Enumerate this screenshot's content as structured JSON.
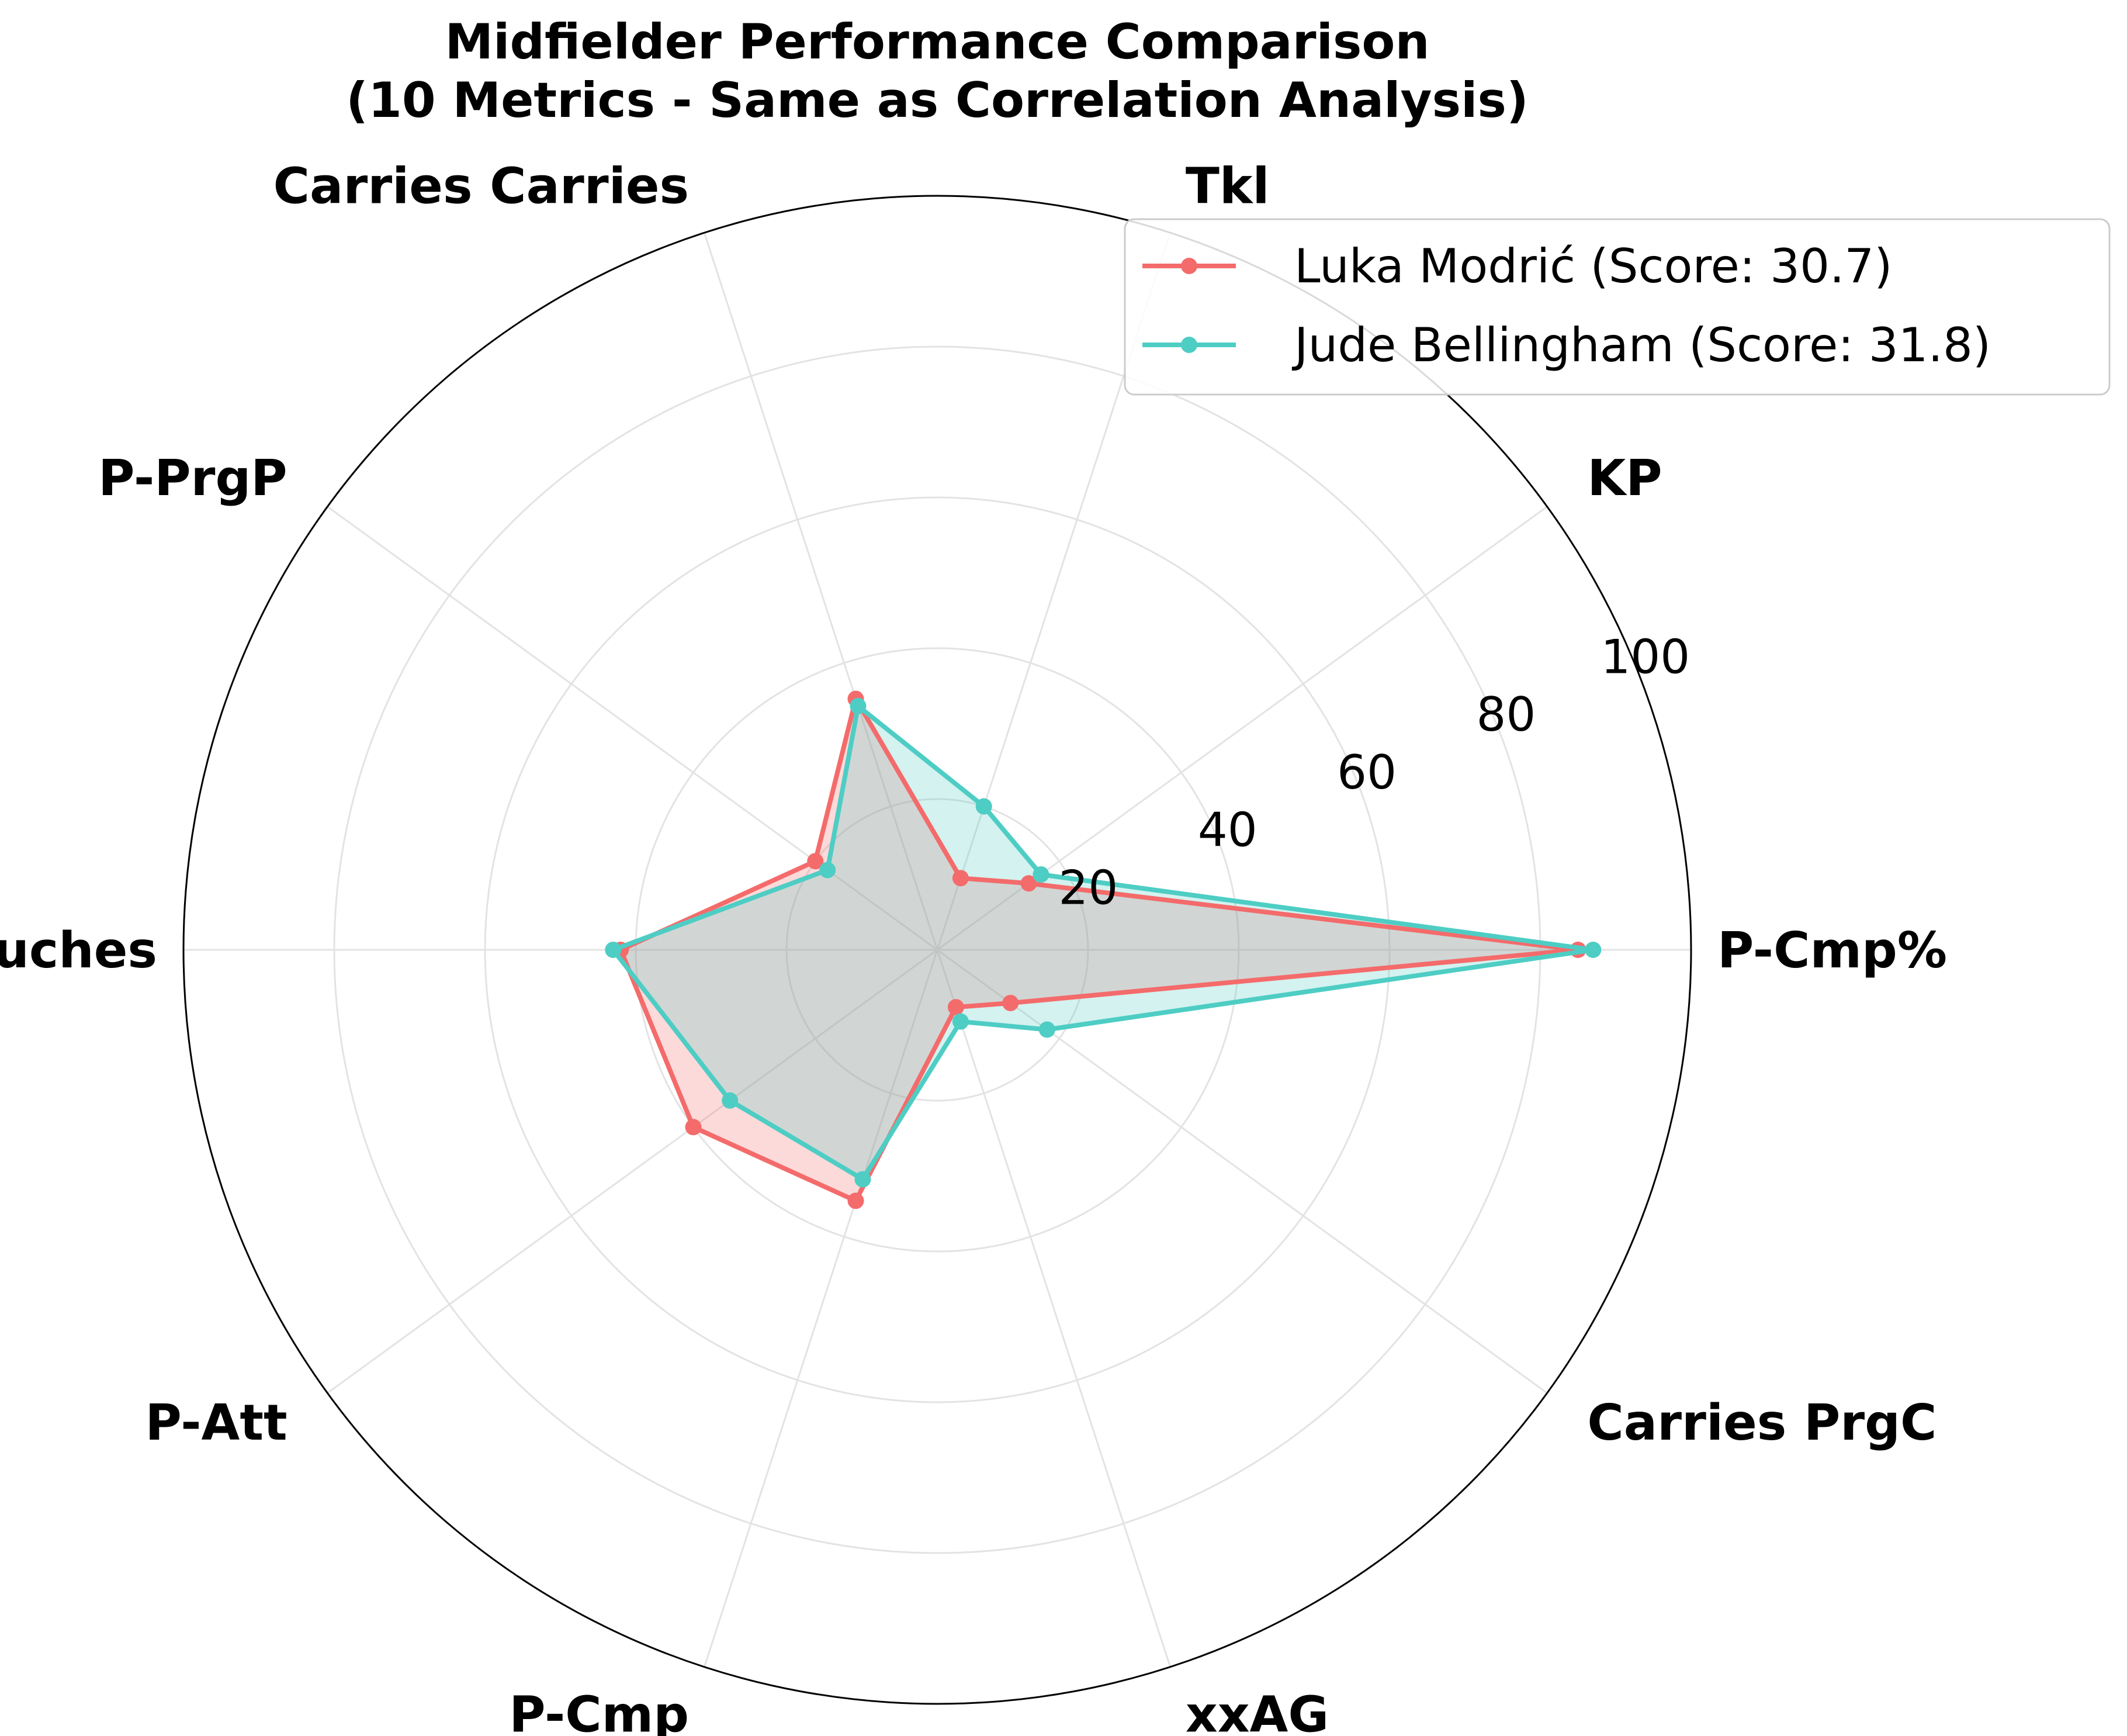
{
  "chart_data": {
    "type": "radar",
    "title": "Midfielder Performance Comparison\n(10 Metrics - Same as Correlation Analysis)",
    "categories": [
      "P-Cmp%",
      "KP",
      "Tkl",
      "Carries Carries",
      "P-PrgP",
      "Touches",
      "P-Att",
      "P-Cmp",
      "xxAG",
      "Carries PrgC"
    ],
    "rlim": [
      0,
      100
    ],
    "rticks": [
      20,
      40,
      60,
      80,
      100
    ],
    "grid": true,
    "legend_position": "top-right",
    "series": [
      {
        "name": "Luka Modrić (Score: 30.7)",
        "color": "#F46B6B",
        "values": [
          85,
          15,
          10,
          35,
          20,
          42,
          40,
          35,
          8,
          12
        ]
      },
      {
        "name": "Jude Bellingham (Score: 31.8)",
        "color": "#4ECDC4",
        "values": [
          87,
          17,
          20,
          34,
          18,
          43,
          34,
          32,
          10,
          18
        ]
      }
    ]
  }
}
